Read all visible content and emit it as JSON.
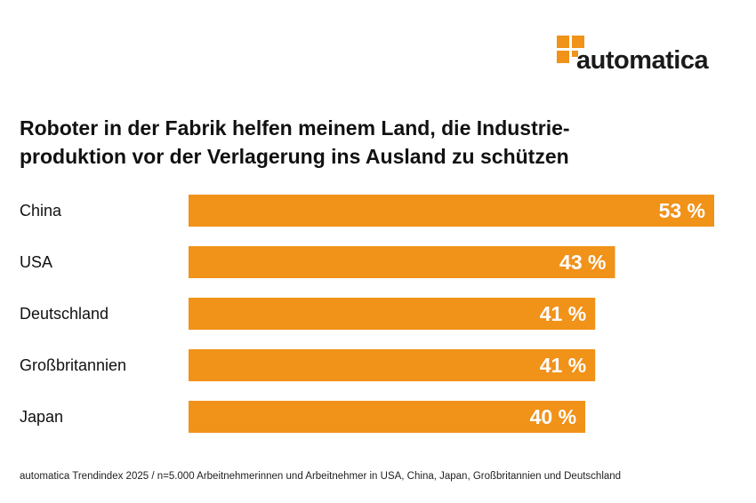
{
  "logo": {
    "text": "automatica",
    "color": "#f19219"
  },
  "title_line1": "Roboter in der Fabrik helfen meinem Land, die Industrie-",
  "title_line2": "produktion vor der Verlagerung ins Ausland zu schützen",
  "footnote": "automatica Trendindex 2025 / n=5.000 Arbeitnehmerinnen und Arbeitnehmer in USA, China, Japan, Großbritannien und Deutschland",
  "chart_data": {
    "type": "bar",
    "orientation": "horizontal",
    "categories": [
      "China",
      "USA",
      "Deutschland",
      "Großbritannien",
      "Japan"
    ],
    "values": [
      53,
      43,
      41,
      41,
      40
    ],
    "value_labels": [
      "53 %",
      "43 %",
      "41 %",
      "41 %",
      "40 %"
    ],
    "unit": "%",
    "bar_color": "#f19219",
    "label_color": "#ffffff",
    "grid": false,
    "legend": "none"
  }
}
